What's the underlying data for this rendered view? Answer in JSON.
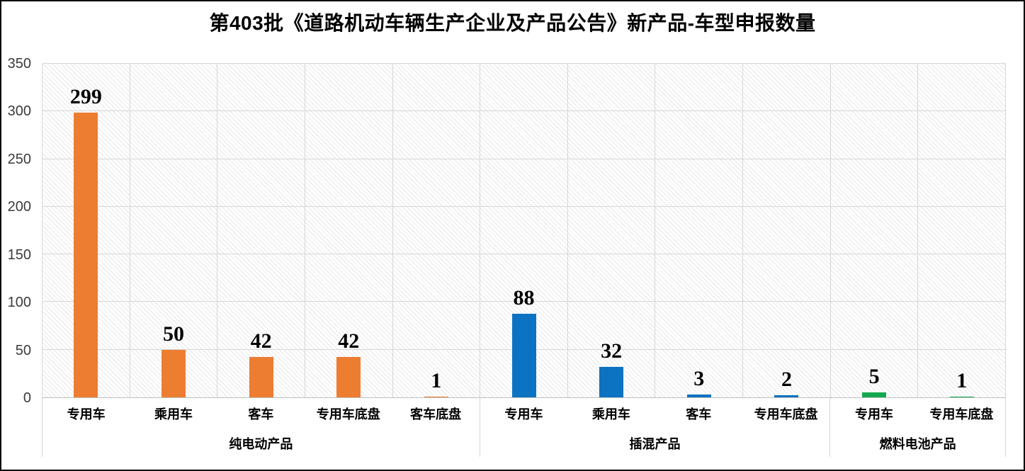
{
  "chart_data": {
    "type": "bar",
    "title": "第403批《道路机动车辆生产企业及产品公告》新产品-车型申报数量",
    "xlabel": "",
    "ylabel": "",
    "ylim": [
      0,
      350
    ],
    "yticks": [
      0,
      50,
      100,
      150,
      200,
      250,
      300,
      350
    ],
    "grid": "horizontal gridlines at each y-tick, vertical gridlines at category boundaries, hatched plot background",
    "legend": "none",
    "groups": [
      {
        "label": "纯电动产品",
        "color": "#ED7D31",
        "categories": [
          "专用车",
          "乘用车",
          "客车",
          "专用车底盘",
          "客车底盘"
        ],
        "values": [
          299,
          50,
          42,
          42,
          1
        ]
      },
      {
        "label": "插混产品",
        "color": "#0C72C2",
        "categories": [
          "专用车",
          "乘用车",
          "客车",
          "专用车底盘"
        ],
        "values": [
          88,
          32,
          3,
          2
        ]
      },
      {
        "label": "燃料电池产品",
        "color": "#13A84E",
        "categories": [
          "专用车",
          "专用车底盘"
        ],
        "values": [
          5,
          1
        ]
      }
    ]
  }
}
